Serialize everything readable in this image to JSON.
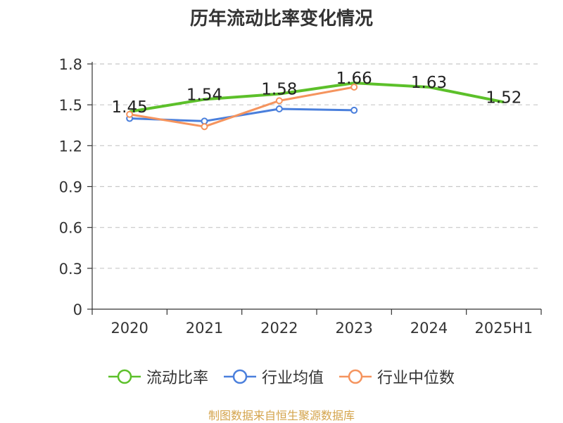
{
  "chart_data": {
    "type": "line",
    "title": "历年流动比率变化情况",
    "categories": [
      "2020",
      "2021",
      "2022",
      "2023",
      "2024",
      "2025H1"
    ],
    "ylim": [
      0,
      1.8
    ],
    "yticks": [
      "0",
      "0.3",
      "0.6",
      "0.9",
      "1.2",
      "1.5",
      "1.8"
    ],
    "grid": true,
    "legend_position": "bottom",
    "series": [
      {
        "name": "流动比率",
        "values": [
          1.45,
          1.54,
          1.58,
          1.66,
          1.63,
          1.52
        ],
        "color": "#5cc02a",
        "labels": [
          "1.45",
          "1.54",
          "1.58",
          "1.66",
          "1.63",
          "1.52"
        ],
        "show_markers": false
      },
      {
        "name": "行业均值",
        "values": [
          1.4,
          1.38,
          1.47,
          1.46,
          null,
          null
        ],
        "color": "#4a7fdc",
        "show_markers": true
      },
      {
        "name": "行业中位数",
        "values": [
          1.43,
          1.34,
          1.53,
          1.63,
          null,
          null
        ],
        "color": "#f5945e",
        "show_markers": true
      }
    ]
  },
  "footer": {
    "source": "制图数据来自恒生聚源数据库"
  }
}
